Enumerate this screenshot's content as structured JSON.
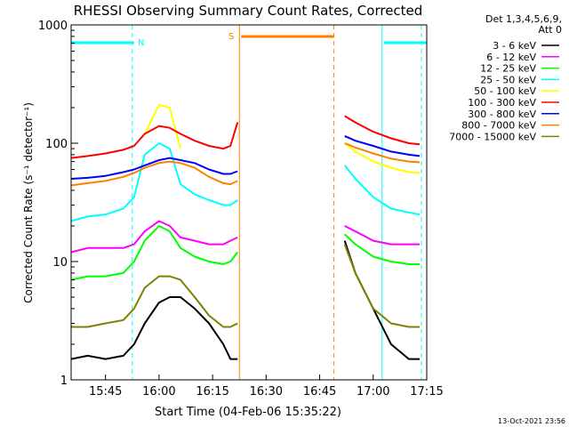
{
  "chart_data": {
    "type": "line",
    "title": "RHESSI Observing Summary Count Rates, Corrected",
    "xlabel": "Start Time (04-Feb-06 15:35:22)",
    "ylabel": "Corrected Count Rate (s⁻¹ detector⁻¹)",
    "y_scale": "log",
    "ylim": [
      1,
      1000
    ],
    "xlim": [
      "15:35:22",
      "17:15:00"
    ],
    "x_ticks": [
      "15:45",
      "16:00",
      "16:15",
      "16:30",
      "16:45",
      "17:00",
      "17:15"
    ],
    "y_ticks": [
      "1",
      "10",
      "100",
      "1000"
    ],
    "grid": false,
    "legend_position": "top-right",
    "legend_header": [
      "Det 1,3,4,5,6,9,",
      "Att 0"
    ],
    "footer_date": "13-Oct-2021 23:56",
    "markers": {
      "night": {
        "label": "N",
        "color": "#00ffff",
        "bar_start": "15:35:22",
        "bar_end": "15:53:00",
        "bar_start_2": "17:03:00",
        "bar_end_2": "17:15:00",
        "lines": [
          "15:35:22",
          "15:52:30",
          "17:02:30",
          "17:13:30"
        ]
      },
      "saa": {
        "label": "S",
        "color": "#ff8000",
        "start": "16:22:30",
        "end": "16:49:00"
      }
    },
    "gap": {
      "start": "16:22:30",
      "end": "16:52:00"
    },
    "series": [
      {
        "name": "3 - 6 keV",
        "color": "#000000",
        "x": [
          "15:35:22",
          "15:40",
          "15:45",
          "15:50",
          "15:53",
          "15:56",
          "16:00",
          "16:03",
          "16:06",
          "16:10",
          "16:14",
          "16:18",
          "16:20",
          "16:22",
          "16:52",
          "16:55",
          "17:00",
          "17:05",
          "17:10",
          "17:13"
        ],
        "values": [
          1.5,
          1.6,
          1.5,
          1.6,
          2,
          3,
          4.5,
          5,
          5,
          4,
          3,
          2,
          1.5,
          1.5,
          15,
          8,
          4,
          2,
          1.5,
          1.5
        ]
      },
      {
        "name": "6 - 12 keV",
        "color": "#ff00ff",
        "x": [
          "15:35:22",
          "15:40",
          "15:45",
          "15:50",
          "15:53",
          "15:56",
          "16:00",
          "16:03",
          "16:06",
          "16:10",
          "16:14",
          "16:18",
          "16:20",
          "16:22",
          "16:52",
          "16:55",
          "17:00",
          "17:05",
          "17:10",
          "17:13"
        ],
        "values": [
          12,
          13,
          13,
          13,
          14,
          18,
          22,
          20,
          16,
          15,
          14,
          14,
          15,
          16,
          20,
          18,
          15,
          14,
          14,
          14
        ]
      },
      {
        "name": "12 - 25 keV",
        "color": "#00ff00",
        "x": [
          "15:35:22",
          "15:40",
          "15:45",
          "15:50",
          "15:53",
          "15:56",
          "16:00",
          "16:03",
          "16:06",
          "16:10",
          "16:14",
          "16:18",
          "16:20",
          "16:22",
          "16:52",
          "16:55",
          "17:00",
          "17:05",
          "17:10",
          "17:13"
        ],
        "values": [
          7,
          7.5,
          7.5,
          8,
          10,
          15,
          20,
          18,
          13,
          11,
          10,
          9.5,
          10,
          12,
          17,
          14,
          11,
          10,
          9.5,
          9.5
        ]
      },
      {
        "name": "25 - 50 keV",
        "color": "#00ffff",
        "x": [
          "15:35:22",
          "15:40",
          "15:45",
          "15:50",
          "15:53",
          "15:56",
          "16:00",
          "16:03",
          "16:06",
          "16:10",
          "16:14",
          "16:18",
          "16:20",
          "16:22",
          "16:52",
          "16:55",
          "17:00",
          "17:05",
          "17:10",
          "17:13"
        ],
        "values": [
          22,
          24,
          25,
          28,
          35,
          80,
          100,
          90,
          45,
          37,
          33,
          30,
          30,
          33,
          65,
          50,
          35,
          28,
          26,
          25
        ]
      },
      {
        "name": "50 - 100 keV",
        "color": "#ffff00",
        "x": [
          "15:35:22",
          "15:40",
          "15:45",
          "15:50",
          "15:53",
          "15:56",
          "16:00",
          "16:03",
          "16:06",
          "16:10",
          "16:14",
          "16:18",
          "16:20",
          "16:22",
          "16:52",
          "16:55",
          "17:00",
          "17:05",
          "17:10",
          "17:13"
        ],
        "values": [
          null,
          null,
          null,
          null,
          null,
          120,
          210,
          200,
          90,
          null,
          null,
          null,
          null,
          null,
          100,
          85,
          70,
          62,
          57,
          56
        ]
      },
      {
        "name": "100 - 300 keV",
        "color": "#ff0000",
        "x": [
          "15:35:22",
          "15:40",
          "15:45",
          "15:50",
          "15:53",
          "15:56",
          "16:00",
          "16:03",
          "16:06",
          "16:10",
          "16:14",
          "16:18",
          "16:20",
          "16:22",
          "16:52",
          "16:55",
          "17:00",
          "17:05",
          "17:10",
          "17:13"
        ],
        "values": [
          75,
          78,
          82,
          88,
          95,
          120,
          140,
          135,
          120,
          105,
          95,
          90,
          95,
          150,
          170,
          150,
          125,
          110,
          100,
          98
        ]
      },
      {
        "name": "300 - 800 keV",
        "color": "#0000ff",
        "x": [
          "15:35:22",
          "15:40",
          "15:45",
          "15:50",
          "15:53",
          "15:56",
          "16:00",
          "16:03",
          "16:06",
          "16:10",
          "16:14",
          "16:18",
          "16:20",
          "16:22",
          "16:52",
          "16:55",
          "17:00",
          "17:05",
          "17:10",
          "17:13"
        ],
        "values": [
          50,
          51,
          53,
          57,
          60,
          65,
          72,
          75,
          72,
          68,
          60,
          55,
          55,
          58,
          115,
          105,
          95,
          85,
          80,
          78
        ]
      },
      {
        "name": "800 - 7000 keV",
        "color": "#ff8000",
        "x": [
          "15:35:22",
          "15:40",
          "15:45",
          "15:50",
          "15:53",
          "15:56",
          "16:00",
          "16:03",
          "16:06",
          "16:10",
          "16:14",
          "16:18",
          "16:20",
          "16:22",
          "16:52",
          "16:55",
          "17:00",
          "17:05",
          "17:10",
          "17:13"
        ],
        "values": [
          44,
          46,
          48,
          52,
          56,
          62,
          68,
          70,
          68,
          62,
          52,
          46,
          45,
          48,
          100,
          92,
          82,
          74,
          70,
          69
        ]
      },
      {
        "name": "7000 - 15000 keV",
        "color": "#808000",
        "x": [
          "15:35:22",
          "15:40",
          "15:45",
          "15:50",
          "15:53",
          "15:56",
          "16:00",
          "16:03",
          "16:06",
          "16:10",
          "16:14",
          "16:18",
          "16:20",
          "16:22",
          "16:52",
          "16:55",
          "17:00",
          "17:05",
          "17:10",
          "17:13"
        ],
        "values": [
          2.8,
          2.8,
          3,
          3.2,
          4,
          6,
          7.5,
          7.5,
          7,
          5,
          3.5,
          2.8,
          2.8,
          3,
          14,
          8,
          4,
          3,
          2.8,
          2.8
        ]
      }
    ]
  }
}
